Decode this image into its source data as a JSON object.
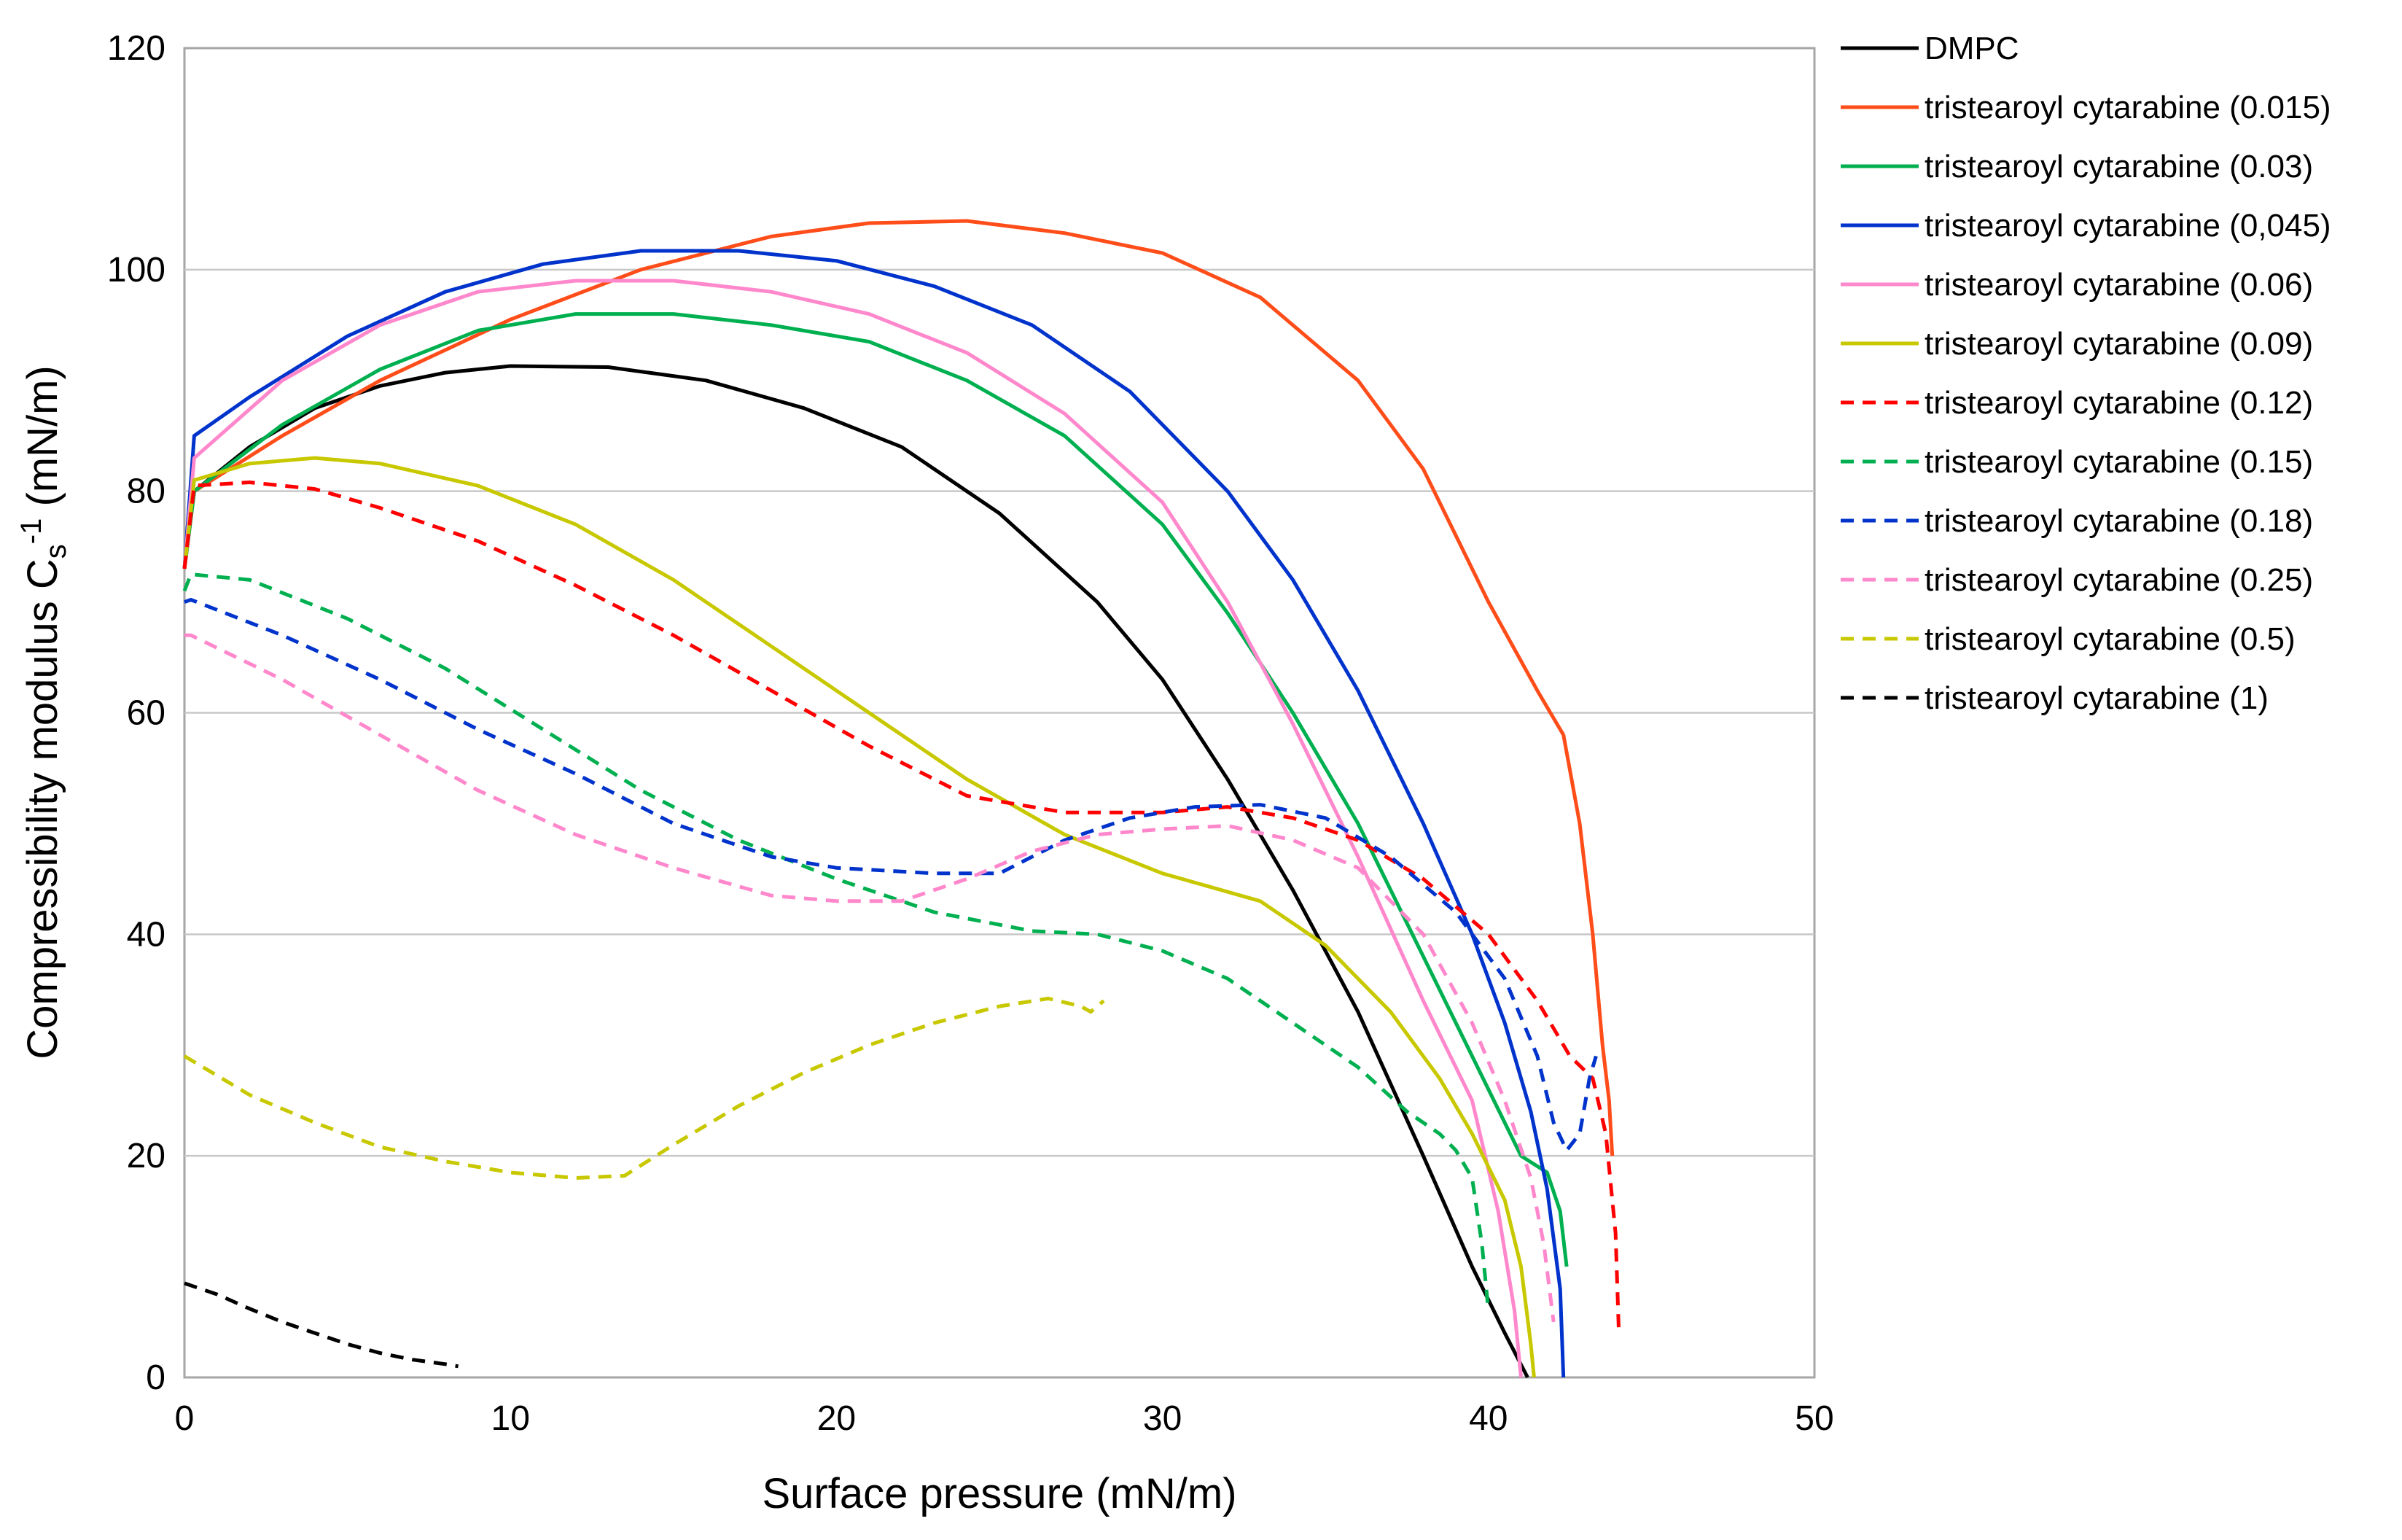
{
  "chart_data": {
    "type": "line",
    "xlabel": "Surface pressure (mN/m)",
    "ylabel": "Compressibility modulus C",
    "ylabel_sub": "s",
    "ylabel_sup": "-1",
    "ylabel_unit": " (mN/m)",
    "xlim": [
      0,
      50
    ],
    "ylim": [
      0,
      120
    ],
    "xticks": [
      0,
      10,
      20,
      30,
      40,
      50
    ],
    "yticks": [
      0,
      20,
      40,
      60,
      80,
      100,
      120
    ],
    "grid": "horizontal",
    "legend_position": "right",
    "series": [
      {
        "name": "DMPC",
        "color": "#000000",
        "dash": "solid",
        "points": [
          [
            0,
            73
          ],
          [
            0.3,
            80
          ],
          [
            2,
            84
          ],
          [
            4,
            87.5
          ],
          [
            6,
            89.5
          ],
          [
            8,
            90.7
          ],
          [
            10,
            91.3
          ],
          [
            13,
            91.2
          ],
          [
            16,
            90
          ],
          [
            19,
            87.5
          ],
          [
            22,
            84
          ],
          [
            25,
            78
          ],
          [
            28,
            70
          ],
          [
            30,
            63
          ],
          [
            32,
            54
          ],
          [
            34,
            44
          ],
          [
            36,
            33
          ],
          [
            38,
            20
          ],
          [
            39.5,
            10
          ],
          [
            40.5,
            4
          ],
          [
            41.2,
            0
          ]
        ]
      },
      {
        "name": "tristearoyl cytarabine (0.015)",
        "color": "#ff4d1a",
        "dash": "solid",
        "points": [
          [
            0,
            73
          ],
          [
            0.3,
            80
          ],
          [
            3,
            85
          ],
          [
            6,
            90
          ],
          [
            10,
            95.5
          ],
          [
            14,
            100
          ],
          [
            18,
            103
          ],
          [
            21,
            104.2
          ],
          [
            24,
            104.4
          ],
          [
            27,
            103.3
          ],
          [
            30,
            101.5
          ],
          [
            33,
            97.5
          ],
          [
            36,
            90
          ],
          [
            38,
            82
          ],
          [
            40,
            70
          ],
          [
            41.5,
            62
          ],
          [
            42.3,
            58
          ],
          [
            42.8,
            50
          ],
          [
            43.2,
            40
          ],
          [
            43.5,
            30
          ],
          [
            43.7,
            25
          ],
          [
            43.8,
            20
          ]
        ]
      },
      {
        "name": "tristearoyl cytarabine (0.03)",
        "color": "#00b050",
        "dash": "solid",
        "points": [
          [
            0,
            73
          ],
          [
            0.3,
            80
          ],
          [
            3,
            86
          ],
          [
            6,
            91
          ],
          [
            9,
            94.5
          ],
          [
            12,
            96
          ],
          [
            15,
            96
          ],
          [
            18,
            95
          ],
          [
            21,
            93.5
          ],
          [
            24,
            90
          ],
          [
            27,
            85
          ],
          [
            30,
            77
          ],
          [
            32,
            69
          ],
          [
            34,
            60
          ],
          [
            36,
            50
          ],
          [
            38,
            38
          ],
          [
            40,
            26
          ],
          [
            41,
            20
          ],
          [
            41.8,
            18.5
          ],
          [
            42.2,
            15
          ],
          [
            42.4,
            10
          ]
        ]
      },
      {
        "name": "tristearoyl cytarabine (0,045)",
        "color": "#0033cc",
        "dash": "solid",
        "points": [
          [
            0,
            73
          ],
          [
            0.3,
            85
          ],
          [
            2,
            88.5
          ],
          [
            5,
            94
          ],
          [
            8,
            98
          ],
          [
            11,
            100.5
          ],
          [
            14,
            101.7
          ],
          [
            17,
            101.7
          ],
          [
            20,
            100.8
          ],
          [
            23,
            98.5
          ],
          [
            26,
            95
          ],
          [
            29,
            89
          ],
          [
            32,
            80
          ],
          [
            34,
            72
          ],
          [
            36,
            62
          ],
          [
            38,
            50
          ],
          [
            39.5,
            40
          ],
          [
            40.5,
            32
          ],
          [
            41.3,
            24
          ],
          [
            41.8,
            17
          ],
          [
            42.2,
            8
          ],
          [
            42.3,
            0
          ]
        ]
      },
      {
        "name": "tristearoyl cytarabine (0.06)",
        "color": "#ff88cc",
        "dash": "solid",
        "points": [
          [
            0,
            73
          ],
          [
            0.3,
            83
          ],
          [
            3,
            90
          ],
          [
            6,
            95
          ],
          [
            9,
            98
          ],
          [
            12,
            99
          ],
          [
            15,
            99
          ],
          [
            18,
            98
          ],
          [
            21,
            96
          ],
          [
            24,
            92.5
          ],
          [
            27,
            87
          ],
          [
            30,
            79
          ],
          [
            32,
            70
          ],
          [
            34,
            59
          ],
          [
            36,
            47
          ],
          [
            38,
            34
          ],
          [
            39.5,
            25
          ],
          [
            40.3,
            15
          ],
          [
            40.8,
            6
          ],
          [
            41,
            0
          ]
        ]
      },
      {
        "name": "tristearoyl cytarabine (0.09)",
        "color": "#c8c800",
        "dash": "solid",
        "points": [
          [
            0,
            73
          ],
          [
            0.3,
            81
          ],
          [
            2,
            82.5
          ],
          [
            4,
            83
          ],
          [
            6,
            82.5
          ],
          [
            9,
            80.5
          ],
          [
            12,
            77
          ],
          [
            15,
            72
          ],
          [
            18,
            66
          ],
          [
            21,
            60
          ],
          [
            24,
            54
          ],
          [
            27,
            49
          ],
          [
            30,
            45.5
          ],
          [
            33,
            43
          ],
          [
            35,
            39
          ],
          [
            37,
            33
          ],
          [
            38.5,
            27
          ],
          [
            39.5,
            22
          ],
          [
            40.5,
            16
          ],
          [
            41,
            10
          ],
          [
            41.3,
            3
          ],
          [
            41.4,
            0
          ]
        ]
      },
      {
        "name": "tristearoyl cytarabine (0.12)",
        "color": "#ff0000",
        "dash": "dash",
        "points": [
          [
            0,
            73
          ],
          [
            0.3,
            80.5
          ],
          [
            2,
            80.8
          ],
          [
            4,
            80.2
          ],
          [
            6,
            78.5
          ],
          [
            9,
            75.5
          ],
          [
            12,
            71.5
          ],
          [
            15,
            67
          ],
          [
            18,
            62
          ],
          [
            21,
            57
          ],
          [
            24,
            52.5
          ],
          [
            27,
            51
          ],
          [
            30,
            51
          ],
          [
            32,
            51.5
          ],
          [
            34,
            50.5
          ],
          [
            36,
            48.5
          ],
          [
            38,
            45
          ],
          [
            40,
            40
          ],
          [
            41.5,
            34
          ],
          [
            42.5,
            29
          ],
          [
            43.2,
            27
          ],
          [
            43.6,
            22
          ],
          [
            43.9,
            13
          ],
          [
            44,
            4
          ]
        ]
      },
      {
        "name": "tristearoyl cytarabine (0.15)",
        "color": "#00b050",
        "dash": "dash",
        "points": [
          [
            0,
            71
          ],
          [
            0.2,
            72.5
          ],
          [
            2,
            72
          ],
          [
            5,
            68.5
          ],
          [
            8,
            64
          ],
          [
            11,
            58.5
          ],
          [
            14,
            53
          ],
          [
            17,
            48.5
          ],
          [
            20,
            45
          ],
          [
            23,
            42
          ],
          [
            26,
            40.3
          ],
          [
            28,
            40
          ],
          [
            30,
            38.5
          ],
          [
            32,
            36
          ],
          [
            34,
            32
          ],
          [
            36,
            28
          ],
          [
            37.5,
            24
          ],
          [
            38.5,
            22
          ],
          [
            39,
            20.5
          ],
          [
            39.5,
            18
          ],
          [
            39.8,
            12
          ],
          [
            40,
            6
          ]
        ]
      },
      {
        "name": "tristearoyl cytarabine (0.18)",
        "color": "#0033cc",
        "dash": "dash",
        "points": [
          [
            0,
            70
          ],
          [
            0.2,
            70.2
          ],
          [
            3,
            67
          ],
          [
            6,
            63
          ],
          [
            9,
            58.5
          ],
          [
            12,
            54.5
          ],
          [
            15,
            50
          ],
          [
            18,
            47
          ],
          [
            20,
            46
          ],
          [
            23,
            45.5
          ],
          [
            25,
            45.5
          ],
          [
            27,
            48.5
          ],
          [
            29,
            50.5
          ],
          [
            31,
            51.5
          ],
          [
            33,
            51.7
          ],
          [
            35,
            50.5
          ],
          [
            37,
            47
          ],
          [
            39,
            42
          ],
          [
            40.5,
            36
          ],
          [
            41.5,
            29
          ],
          [
            42,
            23
          ],
          [
            42.4,
            20.5
          ],
          [
            42.8,
            22
          ],
          [
            43.1,
            27
          ],
          [
            43.3,
            29
          ]
        ]
      },
      {
        "name": "tristearoyl cytarabine (0.25)",
        "color": "#ff88cc",
        "dash": "dash",
        "points": [
          [
            0,
            67
          ],
          [
            0.2,
            67
          ],
          [
            3,
            63
          ],
          [
            6,
            58
          ],
          [
            9,
            53
          ],
          [
            12,
            49
          ],
          [
            15,
            46
          ],
          [
            18,
            43.5
          ],
          [
            20,
            43
          ],
          [
            22,
            43
          ],
          [
            24,
            45
          ],
          [
            26,
            47.5
          ],
          [
            28,
            49
          ],
          [
            30,
            49.5
          ],
          [
            32,
            49.8
          ],
          [
            34,
            48.5
          ],
          [
            36,
            46
          ],
          [
            38,
            40
          ],
          [
            39.5,
            32
          ],
          [
            40.5,
            25
          ],
          [
            41.3,
            18
          ],
          [
            41.7,
            12
          ],
          [
            42,
            5
          ]
        ]
      },
      {
        "name": "tristearoyl cytarabine (0.5)",
        "color": "#c8c800",
        "dash": "dash",
        "points": [
          [
            0,
            29
          ],
          [
            2,
            25.5
          ],
          [
            4,
            23
          ],
          [
            6,
            20.8
          ],
          [
            8,
            19.5
          ],
          [
            10,
            18.5
          ],
          [
            12,
            18
          ],
          [
            13.5,
            18.2
          ],
          [
            15,
            21
          ],
          [
            17,
            24.5
          ],
          [
            19,
            27.5
          ],
          [
            21,
            30
          ],
          [
            23,
            32
          ],
          [
            25,
            33.5
          ],
          [
            26.5,
            34.2
          ],
          [
            27.5,
            33.5
          ],
          [
            27.8,
            33
          ],
          [
            28,
            33.5
          ],
          [
            28.2,
            34
          ]
        ]
      },
      {
        "name": "tristearoyl cytarabine (1)",
        "color": "#000000",
        "dash": "dash",
        "points": [
          [
            0,
            8.5
          ],
          [
            1,
            7.5
          ],
          [
            2,
            6.2
          ],
          [
            3,
            5
          ],
          [
            4,
            4
          ],
          [
            5,
            3
          ],
          [
            6,
            2.2
          ],
          [
            7,
            1.6
          ],
          [
            8,
            1.2
          ],
          [
            8.4,
            1
          ]
        ]
      }
    ]
  }
}
